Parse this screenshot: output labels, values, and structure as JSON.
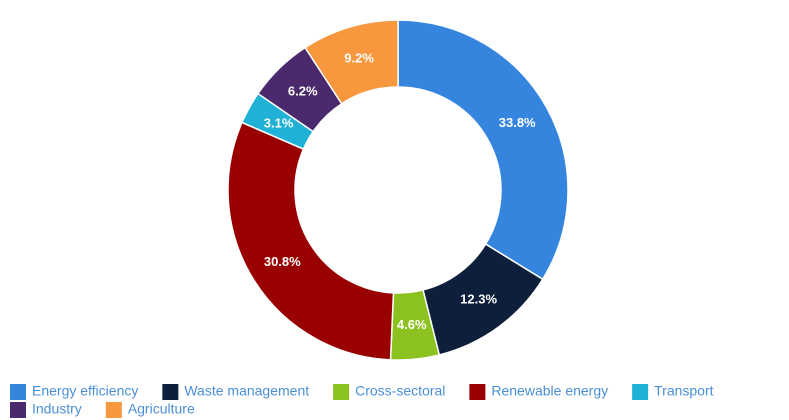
{
  "chart_data": {
    "type": "donut",
    "categories": [
      "Energy efficiency",
      "Waste management",
      "Cross-sectoral",
      "Renewable energy",
      "Transport",
      "Industry",
      "Agriculture"
    ],
    "values": [
      33.8,
      12.3,
      4.6,
      30.8,
      3.1,
      6.2,
      9.2
    ],
    "value_labels": [
      "33.8%",
      "12.3%",
      "4.6%",
      "30.8%",
      "3.1%",
      "6.2%",
      "9.2%"
    ],
    "colors": [
      "#3585de",
      "#0d1f3a",
      "#8cc21f",
      "#990000",
      "#1fb1d6",
      "#4a2a6c",
      "#f7973e"
    ],
    "legend": "bottom"
  }
}
